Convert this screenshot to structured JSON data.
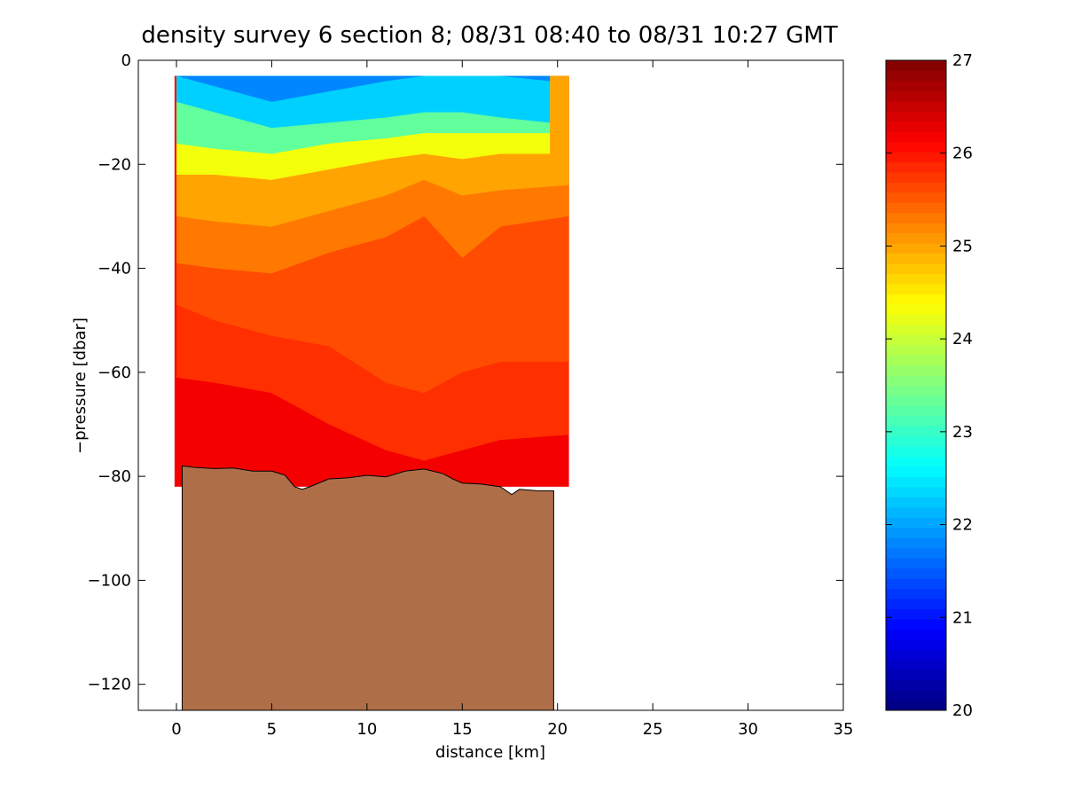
{
  "chart_data": {
    "type": "heatmap",
    "title": "density survey 6 section 8; 08/31 08:40 to 08/31 10:27 GMT",
    "xlabel": "distance [km]",
    "ylabel": "−pressure [dbar]",
    "xlim": [
      -2,
      35
    ],
    "ylim": [
      -125,
      0
    ],
    "x_ticks": [
      0,
      5,
      10,
      15,
      20,
      25,
      30,
      35
    ],
    "y_ticks": [
      0,
      -20,
      -40,
      -60,
      -80,
      -100,
      -120
    ],
    "x_tick_labels": [
      "0",
      "5",
      "10",
      "15",
      "20",
      "25",
      "30",
      "35"
    ],
    "y_tick_labels": [
      "0",
      "−20",
      "−40",
      "−60",
      "−80",
      "−100",
      "−120"
    ],
    "colorbar": {
      "range": [
        20,
        27
      ],
      "ticks": [
        20,
        21,
        22,
        23,
        24,
        25,
        26,
        27
      ],
      "tick_labels": [
        "20",
        "21",
        "22",
        "23",
        "24",
        "25",
        "26",
        "27"
      ],
      "colormap": "jet"
    },
    "data_extent": {
      "x": [
        -0.1,
        20.6
      ],
      "y_top": -3,
      "y_bottom": -82
    },
    "isopycnal_depths": [
      {
        "density": 22.0,
        "x": [
          0,
          2,
          5,
          8,
          11,
          13,
          15,
          17,
          19.6
        ],
        "y": [
          -3,
          -5,
          -8,
          -6,
          -4,
          -3,
          -3,
          -3,
          -4
        ]
      },
      {
        "density": 22.5,
        "x": [
          0,
          2,
          5,
          8,
          11,
          13,
          15,
          17,
          19.6
        ],
        "y": [
          -8,
          -10,
          -13,
          -12,
          -11,
          -10,
          -10,
          -11,
          -12
        ]
      },
      {
        "density": 23.5,
        "x": [
          0,
          2,
          5,
          8,
          11,
          13,
          15,
          17,
          19.6
        ],
        "y": [
          -16,
          -17,
          -18,
          -16,
          -15,
          -14,
          -14,
          -14,
          -14
        ]
      },
      {
        "density": 24.5,
        "x": [
          0,
          2,
          5,
          8,
          11,
          13,
          15,
          17,
          19.6
        ],
        "y": [
          -22,
          -22,
          -23,
          -21,
          -19,
          -18,
          -19,
          -18,
          -18
        ]
      },
      {
        "density": 25.2,
        "x": [
          0,
          2,
          5,
          8,
          11,
          13,
          15,
          17,
          20.6
        ],
        "y": [
          -30,
          -31,
          -32,
          -29,
          -26,
          -23,
          -26,
          -25,
          -24
        ]
      },
      {
        "density": 25.5,
        "x": [
          0,
          2,
          5,
          8,
          11,
          13,
          15,
          17,
          20.6
        ],
        "y": [
          -39,
          -40,
          -41,
          -37,
          -34,
          -30,
          -38,
          -32,
          -30
        ]
      },
      {
        "density": 25.8,
        "x": [
          0,
          2,
          5,
          8,
          11,
          13,
          15,
          17,
          20.6
        ],
        "y": [
          -47,
          -50,
          -53,
          -55,
          -62,
          -64,
          -60,
          -58,
          -58
        ]
      },
      {
        "density": 26.0,
        "x": [
          0,
          2,
          5,
          8,
          11,
          13,
          15,
          17,
          20.6
        ],
        "y": [
          -61,
          -62,
          -64,
          -70,
          -75,
          -77,
          -75,
          -73,
          -72
        ]
      }
    ],
    "bathymetry": {
      "color": "#ae6f48",
      "x": [
        0.3,
        1,
        2,
        3,
        4,
        5,
        5.7,
        6.2,
        6.6,
        7,
        8,
        9,
        10,
        11,
        12,
        13,
        14,
        14.5,
        15,
        16,
        17,
        17.6,
        18,
        19,
        19.8
      ],
      "y": [
        -78,
        -78.3,
        -78.5,
        -78.4,
        -79,
        -79,
        -79.8,
        -82,
        -82.5,
        -82,
        -80.5,
        -80.3,
        -79.8,
        -80.1,
        -79,
        -78.6,
        -79.5,
        -80.5,
        -81.3,
        -81.5,
        -82,
        -83.5,
        -82.5,
        -82.8,
        -82.8
      ]
    }
  }
}
